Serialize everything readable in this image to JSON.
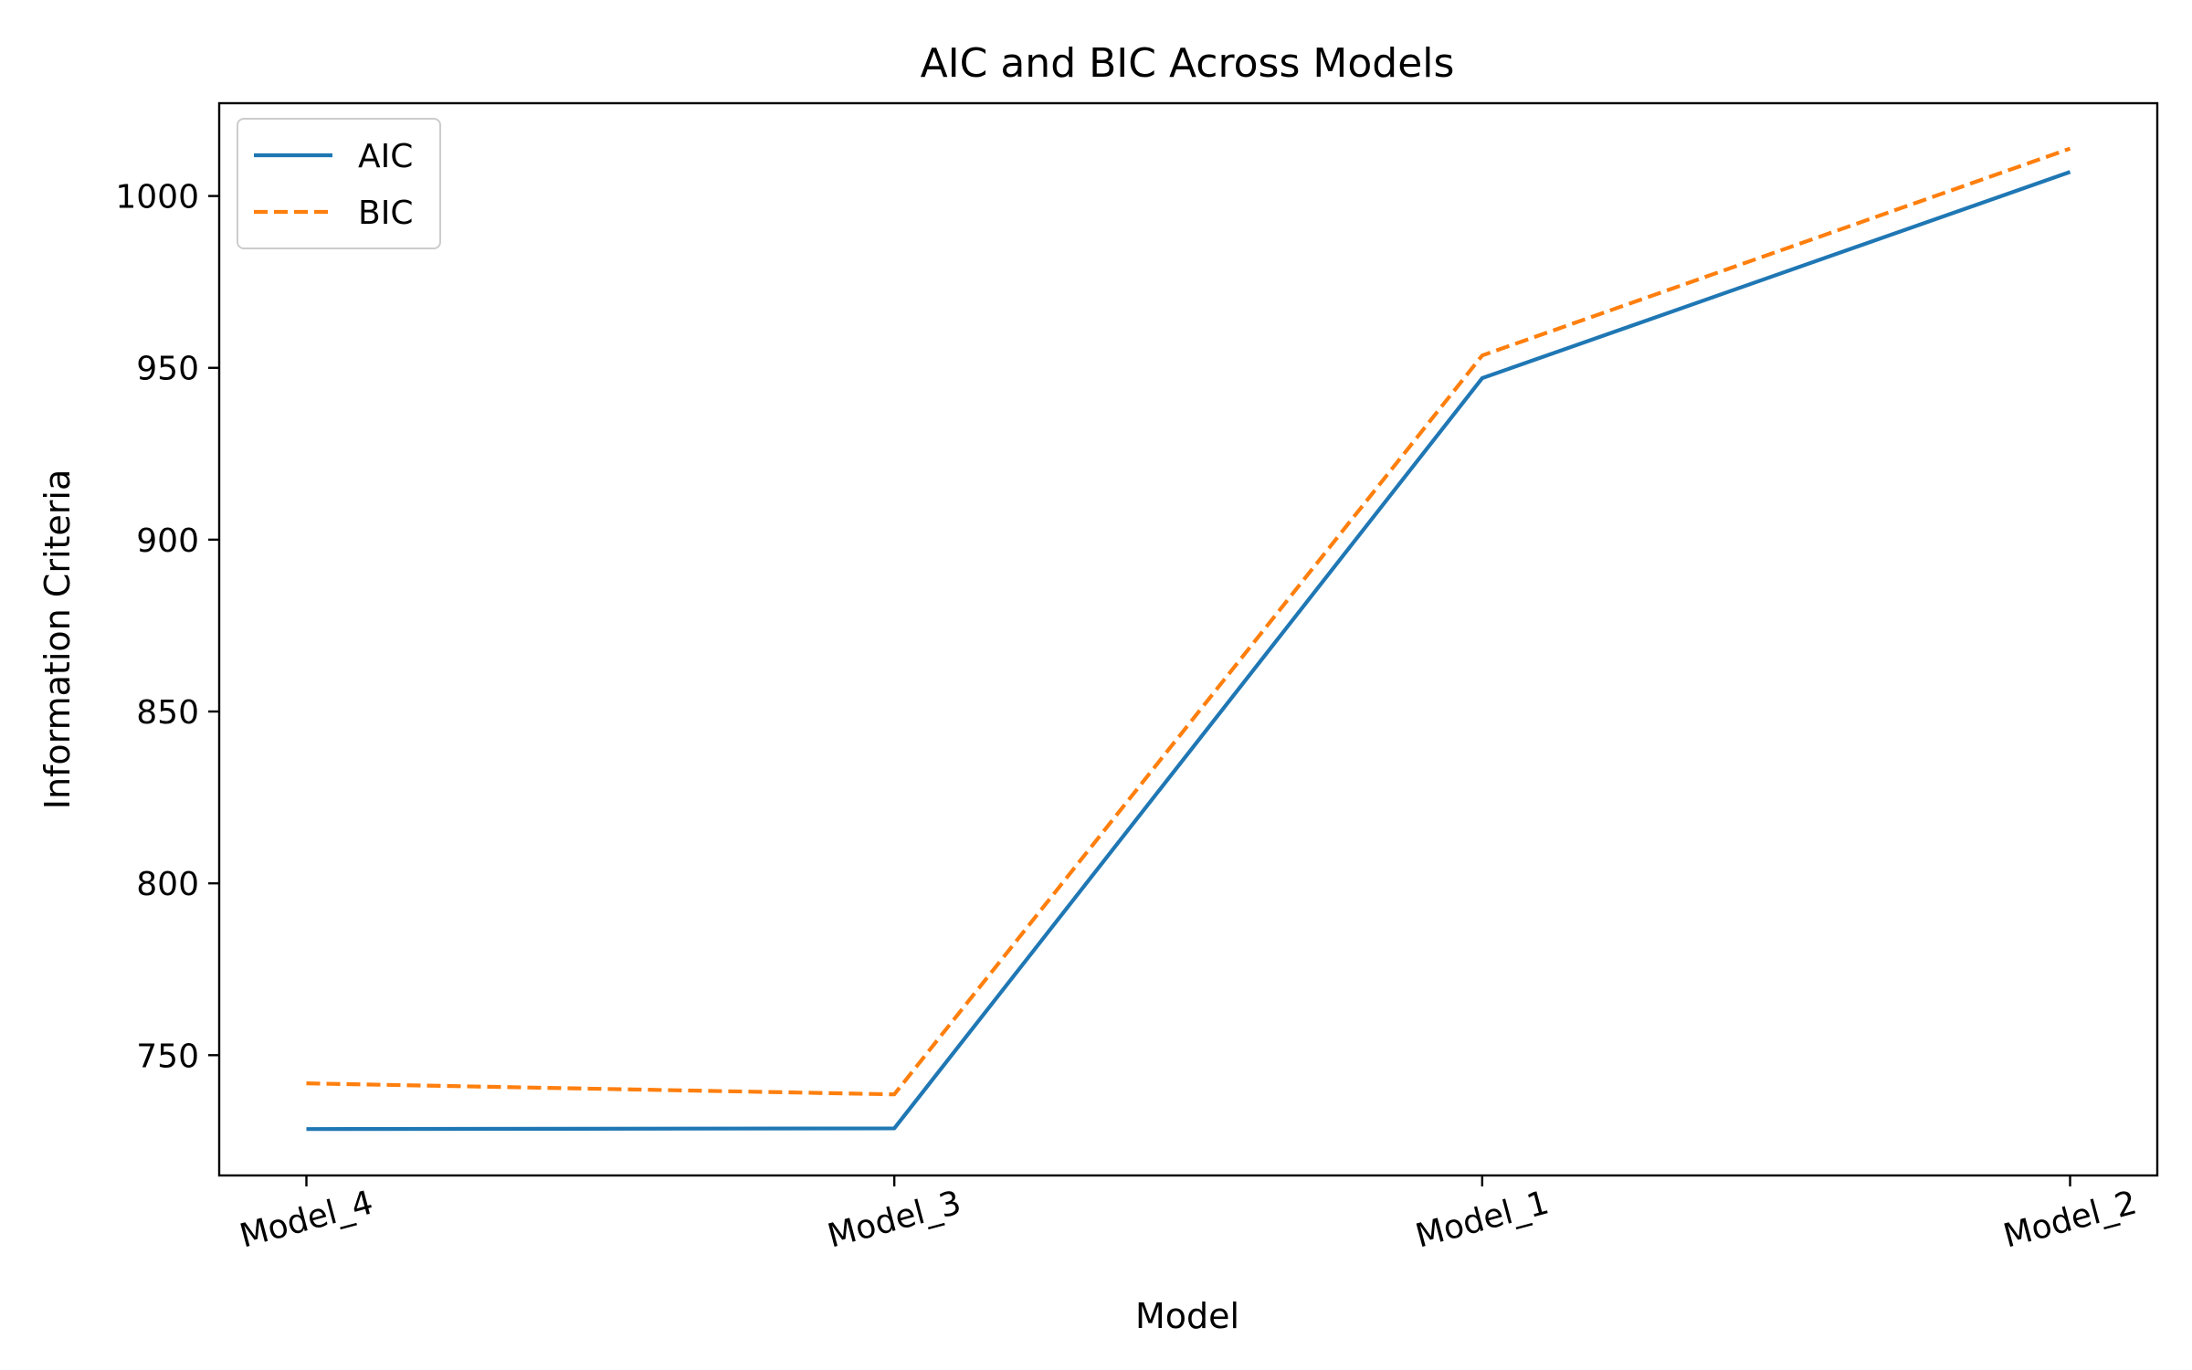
{
  "chart_data": {
    "type": "line",
    "title": "AIC and BIC Across Models",
    "xlabel": "Model",
    "ylabel": "Information Criteria",
    "categories": [
      "Model_4",
      "Model_3",
      "Model_1",
      "Model_2"
    ],
    "series": [
      {
        "name": "AIC",
        "values": [
          728.5,
          728.7,
          947.0,
          1007.0
        ],
        "color": "#1f77b4",
        "style": "solid"
      },
      {
        "name": "BIC",
        "values": [
          741.8,
          738.6,
          953.6,
          1013.8
        ],
        "color": "#ff7f0e",
        "style": "dashed"
      }
    ],
    "ylim": [
      715,
      1027
    ],
    "yticks": [
      750,
      800,
      850,
      900,
      950,
      1000
    ],
    "grid": false,
    "legend": "top-left"
  }
}
